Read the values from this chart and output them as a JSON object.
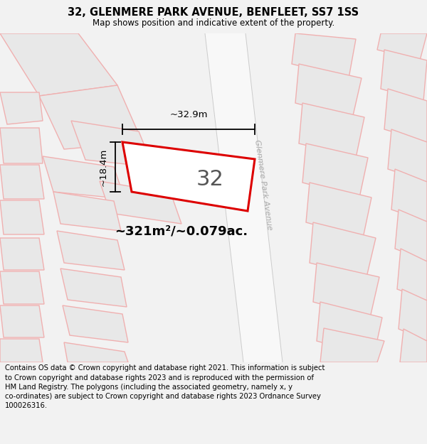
{
  "title": "32, GLENMERE PARK AVENUE, BENFLEET, SS7 1SS",
  "subtitle": "Map shows position and indicative extent of the property.",
  "footer": "Contains OS data © Crown copyright and database right 2021. This information is subject to Crown copyright and database rights 2023 and is reproduced with the permission of HM Land Registry. The polygons (including the associated geometry, namely x, y co-ordinates) are subject to Crown copyright and database rights 2023 Ordnance Survey 100026316.",
  "bg_color": "#f2f2f2",
  "map_bg": "#ffffff",
  "building_fill": "#e8e8e8",
  "highlight_color": "#dd0000",
  "faint_color": "#f0b0b0",
  "road_line_color": "#cccccc",
  "label_number": "32",
  "area_label": "~321m²/~0.079ac.",
  "width_label": "~32.9m",
  "height_label": "~18.4m",
  "road_name": "Glenmere Park Avenue",
  "title_fontsize": 10.5,
  "subtitle_fontsize": 8.5,
  "footer_fontsize": 7.2
}
